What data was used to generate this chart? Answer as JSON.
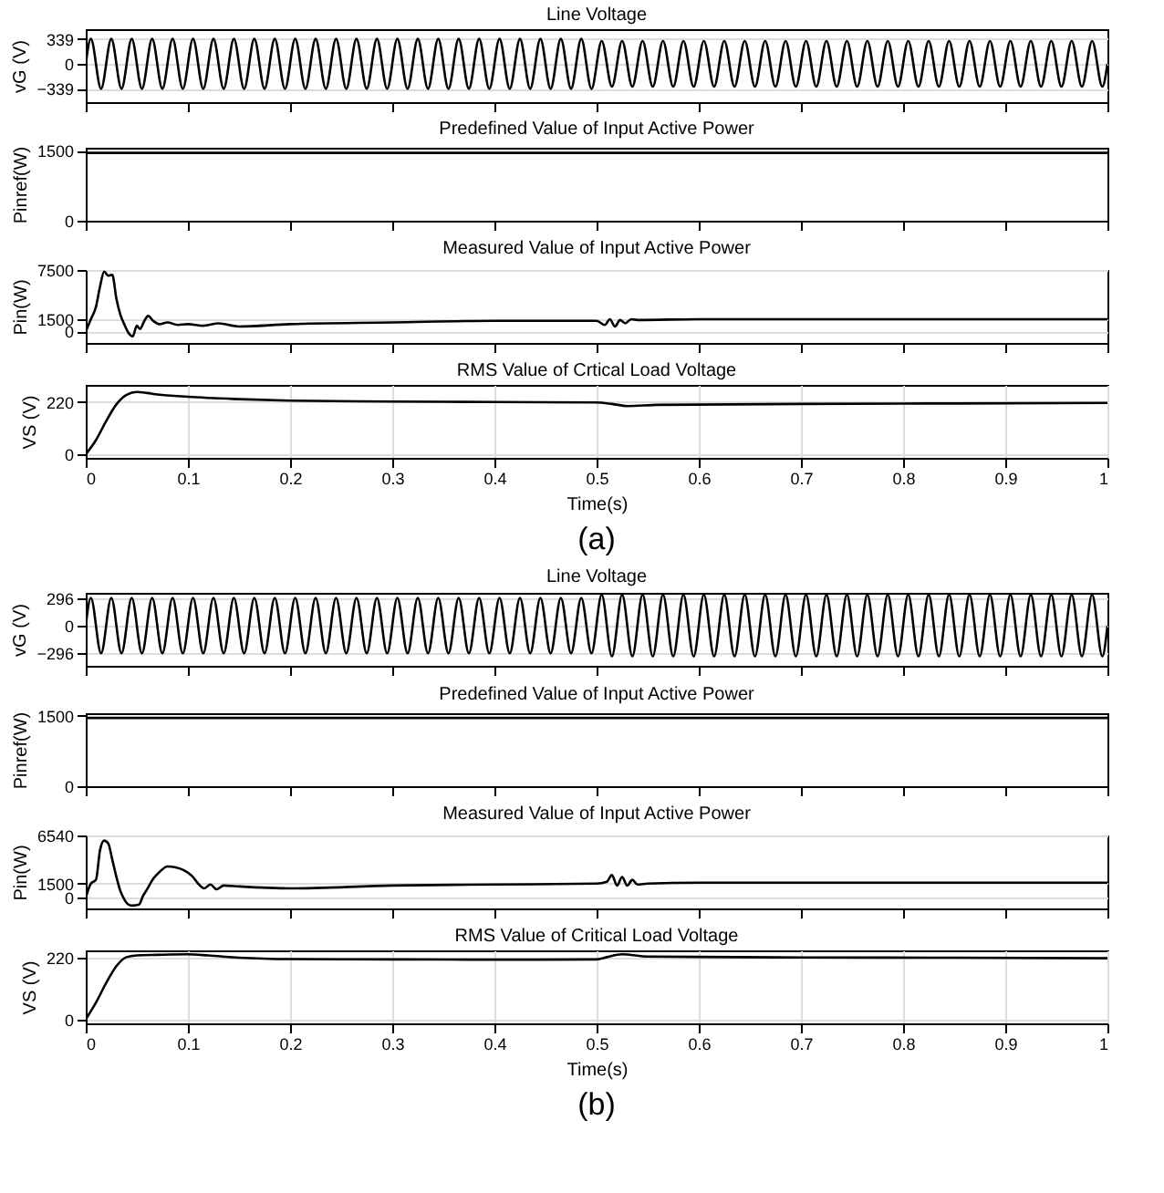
{
  "chart_data": [
    {
      "type": "line",
      "title": "Line Voltage",
      "ylabel": "vG (V)",
      "xlim": [
        0,
        1
      ],
      "xticks": [
        0,
        0.1,
        0.2,
        0.3,
        0.4,
        0.5,
        0.6,
        0.7,
        0.8,
        0.9,
        1
      ],
      "ylim": [
        -520,
        470
      ],
      "yticks": [
        -339,
        0,
        339
      ],
      "grid": "y",
      "tick_labels": "y",
      "series": [
        {
          "color": "#000000",
          "x": [
            0,
            0.005,
            0.015,
            0.025,
            0.035,
            0.045,
            0.055,
            0.065,
            0.075,
            0.085,
            0.095,
            0.105,
            0.115,
            0.125,
            0.135,
            0.145,
            0.155,
            0.165,
            0.175,
            0.185,
            0.195,
            0.205,
            0.215,
            0.225,
            0.235,
            0.245,
            0.255,
            0.265,
            0.275,
            0.285,
            0.295,
            0.305,
            0.315,
            0.325,
            0.335,
            0.345,
            0.355,
            0.365,
            0.375,
            0.385,
            0.395,
            0.405,
            0.415,
            0.425,
            0.435,
            0.445,
            0.455,
            0.465,
            0.475,
            0.485,
            0.495,
            0.505,
            0.515,
            0.525,
            0.535,
            0.545,
            0.555,
            0.565,
            0.575,
            0.585,
            0.595,
            0.605,
            0.615,
            0.625,
            0.635,
            0.645,
            0.655,
            0.665,
            0.675,
            0.685,
            0.695,
            0.705,
            0.715,
            0.725,
            0.735,
            0.745,
            0.755,
            0.765,
            0.775,
            0.785,
            0.795,
            0.805,
            0.815,
            0.825,
            0.835,
            0.845,
            0.855,
            0.865,
            0.875,
            0.885,
            0.895,
            0.905,
            0.915,
            0.925,
            0.935,
            0.945,
            0.955,
            0.965,
            0.975,
            0.985,
            0.995,
            1
          ],
          "values": [
            0,
            339,
            -339,
            339,
            -339,
            339,
            -339,
            339,
            -339,
            339,
            -339,
            339,
            -339,
            339,
            -339,
            339,
            -339,
            339,
            -339,
            339,
            -339,
            339,
            -339,
            339,
            -339,
            339,
            -339,
            339,
            -339,
            339,
            -339,
            339,
            -339,
            339,
            -339,
            339,
            -339,
            339,
            -339,
            339,
            -339,
            339,
            -339,
            339,
            -339,
            339,
            -339,
            339,
            -339,
            339,
            -339,
            310,
            -310,
            310,
            -310,
            310,
            -310,
            310,
            -310,
            310,
            -310,
            310,
            -310,
            310,
            -310,
            310,
            -310,
            310,
            -310,
            310,
            -310,
            310,
            -310,
            310,
            -310,
            310,
            -310,
            310,
            -310,
            310,
            -310,
            310,
            -310,
            310,
            -310,
            310,
            -310,
            310,
            -310,
            310,
            -310,
            310,
            -310,
            310,
            -310,
            310,
            -310,
            310,
            -310,
            310,
            -310,
            0
          ]
        }
      ]
    },
    {
      "type": "line",
      "title": "Predefined Value of Input Active Power",
      "ylabel": "Pinref(W)",
      "xlim": [
        0,
        1
      ],
      "xticks": [
        0,
        0.1,
        0.2,
        0.3,
        0.4,
        0.5,
        0.6,
        0.7,
        0.8,
        0.9,
        1
      ],
      "ylim": [
        0,
        1560
      ],
      "yticks": [
        0,
        1500
      ],
      "tick_labels": "y",
      "series": [
        {
          "color": "#000000",
          "x": [
            0,
            1
          ],
          "values": [
            1450,
            1450
          ]
        }
      ]
    },
    {
      "type": "line",
      "title": "Measured Value of Input Active Power",
      "ylabel": "Pin(W)",
      "xlim": [
        0,
        1
      ],
      "xticks": [
        0,
        0.1,
        0.2,
        0.3,
        0.4,
        0.5,
        0.6,
        0.7,
        0.8,
        0.9,
        1
      ],
      "ylim": [
        -1400,
        7500
      ],
      "yticks": [
        0,
        1500,
        7500
      ],
      "grid": "y",
      "tick_labels": "y",
      "series": [
        {
          "color": "#000000",
          "x": [
            0,
            0.005,
            0.01,
            0.014,
            0.018,
            0.022,
            0.026,
            0.03,
            0.034,
            0.038,
            0.042,
            0.046,
            0.05,
            0.053,
            0.057,
            0.061,
            0.066,
            0.072,
            0.08,
            0.09,
            0.1,
            0.115,
            0.13,
            0.15,
            0.2,
            0.3,
            0.4,
            0.5,
            0.508,
            0.513,
            0.518,
            0.523,
            0.528,
            0.534,
            0.54,
            0.6,
            0.7,
            0.8,
            0.9,
            1
          ],
          "values": [
            0,
            1500,
            3000,
            5500,
            7300,
            6800,
            6900,
            4000,
            2000,
            800,
            -200,
            -600,
            700,
            300,
            1200,
            1900,
            1300,
            900,
            1100,
            800,
            900,
            700,
            1000,
            600,
            900,
            1100,
            1300,
            1300,
            800,
            1500,
            600,
            1400,
            1000,
            1500,
            1400,
            1500,
            1500,
            1500,
            1500,
            1500
          ]
        }
      ]
    },
    {
      "type": "line",
      "title": "RMS Value of Crtical Load Voltage",
      "ylabel": "VS (V)",
      "xlabel": "Time(s)",
      "xlim": [
        0,
        1
      ],
      "xticks": [
        0,
        0.1,
        0.2,
        0.3,
        0.4,
        0.5,
        0.6,
        0.7,
        0.8,
        0.9,
        1
      ],
      "ylim": [
        -15,
        292
      ],
      "yticks": [
        0,
        220
      ],
      "grid": true,
      "annotations": [
        "(a)"
      ],
      "series": [
        {
          "color": "#000000",
          "x": [
            0,
            0.01,
            0.02,
            0.03,
            0.04,
            0.05,
            0.06,
            0.07,
            0.1,
            0.15,
            0.2,
            0.3,
            0.4,
            0.5,
            0.515,
            0.53,
            0.56,
            0.7,
            0.85,
            1
          ],
          "values": [
            0,
            60,
            140,
            210,
            250,
            262,
            258,
            252,
            242,
            232,
            226,
            222,
            220,
            218,
            212,
            203,
            208,
            212,
            214,
            216
          ]
        }
      ]
    },
    {
      "type": "line",
      "title": "Line Voltage",
      "ylabel": "vG (V)",
      "xlim": [
        0,
        1
      ],
      "xticks": [
        0,
        0.1,
        0.2,
        0.3,
        0.4,
        0.5,
        0.6,
        0.7,
        0.8,
        0.9,
        1
      ],
      "ylim": [
        -430,
        350
      ],
      "yticks": [
        -296,
        0,
        296
      ],
      "grid": "y",
      "tick_labels": "y",
      "series": [
        {
          "color": "#000000",
          "x": [
            0,
            0.005,
            0.015,
            0.025,
            0.035,
            0.045,
            0.055,
            0.065,
            0.075,
            0.085,
            0.095,
            0.105,
            0.115,
            0.125,
            0.135,
            0.145,
            0.155,
            0.165,
            0.175,
            0.185,
            0.195,
            0.205,
            0.215,
            0.225,
            0.235,
            0.245,
            0.255,
            0.265,
            0.275,
            0.285,
            0.295,
            0.305,
            0.315,
            0.325,
            0.335,
            0.345,
            0.355,
            0.365,
            0.375,
            0.385,
            0.395,
            0.405,
            0.415,
            0.425,
            0.435,
            0.445,
            0.455,
            0.465,
            0.475,
            0.485,
            0.495,
            0.505,
            0.515,
            0.525,
            0.535,
            0.545,
            0.555,
            0.565,
            0.575,
            0.585,
            0.595,
            0.605,
            0.615,
            0.625,
            0.635,
            0.645,
            0.655,
            0.665,
            0.675,
            0.685,
            0.695,
            0.705,
            0.715,
            0.725,
            0.735,
            0.745,
            0.755,
            0.765,
            0.775,
            0.785,
            0.795,
            0.805,
            0.815,
            0.825,
            0.835,
            0.845,
            0.855,
            0.865,
            0.875,
            0.885,
            0.895,
            0.905,
            0.915,
            0.925,
            0.935,
            0.945,
            0.955,
            0.965,
            0.975,
            0.985,
            0.995,
            1
          ],
          "values": [
            0,
            296,
            -296,
            296,
            -296,
            296,
            -296,
            296,
            -296,
            296,
            -296,
            296,
            -296,
            296,
            -296,
            296,
            -296,
            296,
            -296,
            296,
            -296,
            296,
            -296,
            296,
            -296,
            296,
            -296,
            296,
            -296,
            296,
            -296,
            296,
            -296,
            296,
            -296,
            296,
            -296,
            296,
            -296,
            296,
            -296,
            296,
            -296,
            296,
            -296,
            296,
            -296,
            296,
            -296,
            296,
            -296,
            330,
            -330,
            330,
            -330,
            330,
            -330,
            330,
            -330,
            330,
            -330,
            330,
            -330,
            330,
            -330,
            330,
            -330,
            330,
            -330,
            330,
            -330,
            330,
            -330,
            330,
            -330,
            330,
            -330,
            330,
            -330,
            330,
            -330,
            330,
            -330,
            330,
            -330,
            330,
            -330,
            330,
            -330,
            330,
            -330,
            330,
            -330,
            330,
            -330,
            330,
            -330,
            330,
            -330,
            330,
            -330,
            0
          ]
        }
      ]
    },
    {
      "type": "line",
      "title": "Predefined Value of Input Active Power",
      "ylabel": "Pinref(W)",
      "xlim": [
        0,
        1
      ],
      "xticks": [
        0,
        0.1,
        0.2,
        0.3,
        0.4,
        0.5,
        0.6,
        0.7,
        0.8,
        0.9,
        1
      ],
      "ylim": [
        0,
        1550
      ],
      "yticks": [
        0,
        1500
      ],
      "tick_labels": "y",
      "series": [
        {
          "color": "#000000",
          "x": [
            0,
            1
          ],
          "values": [
            1450,
            1450
          ]
        }
      ]
    },
    {
      "type": "line",
      "title": "Measured Value of Input Active Power",
      "ylabel": "Pin(W)",
      "xlim": [
        0,
        1
      ],
      "xticks": [
        0,
        0.1,
        0.2,
        0.3,
        0.4,
        0.5,
        0.6,
        0.7,
        0.8,
        0.9,
        1
      ],
      "ylim": [
        -1100,
        6540
      ],
      "yticks": [
        0,
        1500,
        6540
      ],
      "grid": "y",
      "tick_labels": "y",
      "series": [
        {
          "color": "#000000",
          "x": [
            0,
            0.005,
            0.01,
            0.014,
            0.018,
            0.022,
            0.026,
            0.03,
            0.034,
            0.038,
            0.042,
            0.046,
            0.052,
            0.056,
            0.06,
            0.066,
            0.072,
            0.08,
            0.088,
            0.096,
            0.104,
            0.11,
            0.116,
            0.122,
            0.128,
            0.135,
            0.15,
            0.2,
            0.3,
            0.4,
            0.5,
            0.51,
            0.515,
            0.52,
            0.525,
            0.53,
            0.535,
            0.54,
            0.55,
            0.6,
            0.7,
            0.8,
            0.9,
            1
          ],
          "values": [
            0,
            1500,
            1900,
            5000,
            6000,
            5700,
            4000,
            2200,
            700,
            -200,
            -700,
            -800,
            -700,
            200,
            900,
            2000,
            2700,
            3300,
            3200,
            2900,
            2300,
            1500,
            1000,
            1400,
            900,
            1300,
            1200,
            1000,
            1300,
            1400,
            1500,
            1700,
            2400,
            1300,
            2200,
            1300,
            1900,
            1400,
            1500,
            1600,
            1600,
            1600,
            1600,
            1600
          ]
        }
      ]
    },
    {
      "type": "line",
      "title": "RMS Value of Critical Load Voltage",
      "ylabel": "VS (V)",
      "xlabel": "Time(s)",
      "xlim": [
        0,
        1
      ],
      "xticks": [
        0,
        0.1,
        0.2,
        0.3,
        0.4,
        0.5,
        0.6,
        0.7,
        0.8,
        0.9,
        1
      ],
      "ylim": [
        -14,
        246
      ],
      "yticks": [
        0,
        220
      ],
      "grid": true,
      "annotations": [
        "(b)"
      ],
      "series": [
        {
          "color": "#000000",
          "x": [
            0,
            0.01,
            0.02,
            0.03,
            0.04,
            0.05,
            0.07,
            0.1,
            0.12,
            0.15,
            0.2,
            0.3,
            0.4,
            0.5,
            0.51,
            0.525,
            0.55,
            0.7,
            0.85,
            1
          ],
          "values": [
            0,
            60,
            130,
            190,
            222,
            228,
            230,
            232,
            228,
            220,
            215,
            214,
            213,
            214,
            222,
            232,
            224,
            221,
            220,
            218
          ]
        }
      ]
    }
  ]
}
